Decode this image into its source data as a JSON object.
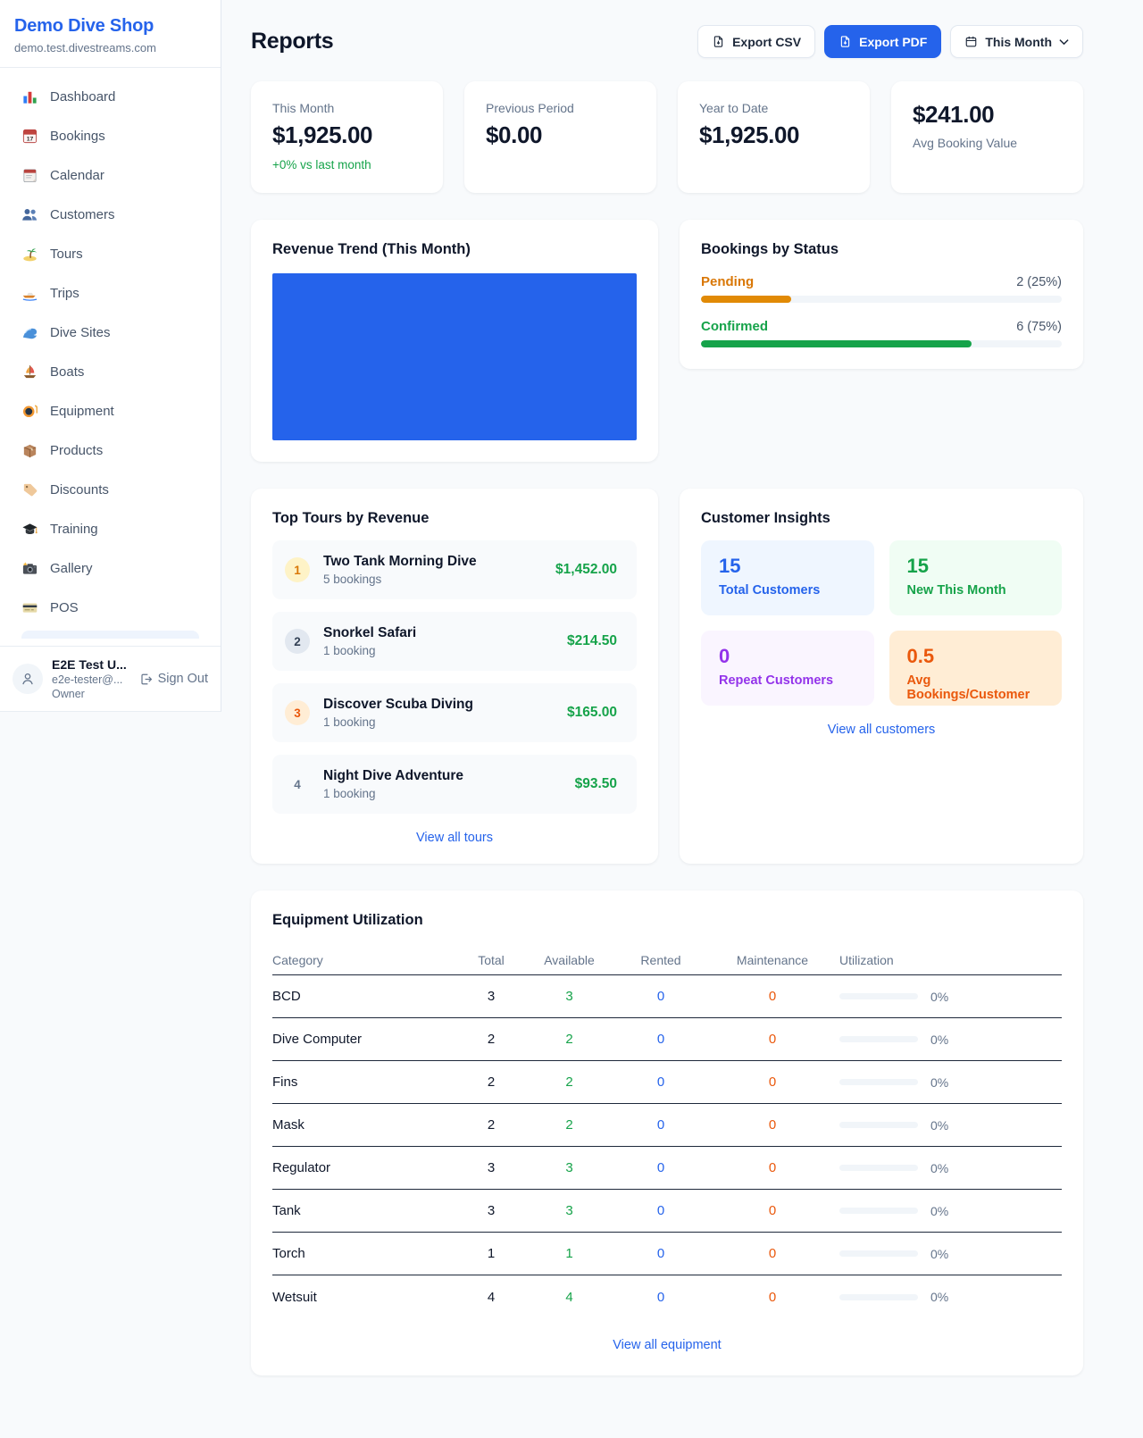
{
  "colors": {
    "accent_blue": "#2563eb",
    "green": "#16a34a",
    "orange": "#ea580c",
    "amber": "#d97706",
    "purple": "#9333ea",
    "page_background": "#f8fafc"
  },
  "sidebar": {
    "shop_name": "Demo Dive Shop",
    "domain": "demo.test.divestreams.com",
    "items": [
      {
        "label": "Dashboard",
        "icon": "bar-chart-icon"
      },
      {
        "label": "Bookings",
        "icon": "calendar-date-icon"
      },
      {
        "label": "Calendar",
        "icon": "calendar-pad-icon"
      },
      {
        "label": "Customers",
        "icon": "people-icon"
      },
      {
        "label": "Tours",
        "icon": "island-icon"
      },
      {
        "label": "Trips",
        "icon": "speedboat-icon"
      },
      {
        "label": "Dive Sites",
        "icon": "wave-icon"
      },
      {
        "label": "Boats",
        "icon": "sailboat-icon"
      },
      {
        "label": "Equipment",
        "icon": "dive-mask-icon"
      },
      {
        "label": "Products",
        "icon": "package-icon"
      },
      {
        "label": "Discounts",
        "icon": "tag-icon"
      },
      {
        "label": "Training",
        "icon": "graduation-cap-icon"
      },
      {
        "label": "Gallery",
        "icon": "camera-icon"
      },
      {
        "label": "POS",
        "icon": "credit-card-icon"
      }
    ],
    "user": {
      "name": "E2E Test U...",
      "email": "e2e-tester@...",
      "role": "Owner",
      "sign_out_label": "Sign Out"
    }
  },
  "header": {
    "title": "Reports",
    "export_csv_label": "Export CSV",
    "export_pdf_label": "Export PDF",
    "period_label": "This Month"
  },
  "stats": {
    "cards": [
      {
        "label": "This Month",
        "value": "$1,925.00",
        "delta": "+0% vs last month"
      },
      {
        "label": "Previous Period",
        "value": "$0.00"
      },
      {
        "label": "Year to Date",
        "value": "$1,925.00"
      },
      {
        "label": "Avg Booking Value",
        "value": "$241.00"
      }
    ]
  },
  "revenue_trend": {
    "title": "Revenue Trend (This Month)",
    "chart": {
      "type": "bar",
      "bar_color": "#2563eb",
      "bars": [
        {
          "fraction_of_plot": 1
        }
      ]
    }
  },
  "bookings_by_status": {
    "title": "Bookings by Status",
    "rows": [
      {
        "label": "Pending",
        "count_label": "2 (25%)",
        "pct": 25,
        "color": "#d97706"
      },
      {
        "label": "Confirmed",
        "count_label": "6 (75%)",
        "pct": 75,
        "color": "#16a34a"
      }
    ]
  },
  "top_tours": {
    "title": "Top Tours by Revenue",
    "rows": [
      {
        "rank": "1",
        "name": "Two Tank Morning Dive",
        "bookings": "5 bookings",
        "revenue": "$1,452.00"
      },
      {
        "rank": "2",
        "name": "Snorkel Safari",
        "bookings": "1 booking",
        "revenue": "$214.50"
      },
      {
        "rank": "3",
        "name": "Discover Scuba Diving",
        "bookings": "1 booking",
        "revenue": "$165.00"
      },
      {
        "rank": "4",
        "name": "Night Dive Adventure",
        "bookings": "1 booking",
        "revenue": "$93.50"
      }
    ],
    "view_all": "View all tours"
  },
  "customer_insights": {
    "title": "Customer Insights",
    "tiles": [
      {
        "value": "15",
        "label": "Total Customers"
      },
      {
        "value": "15",
        "label": "New This Month"
      },
      {
        "value": "0",
        "label": "Repeat Customers"
      },
      {
        "value": "0.5",
        "label": "Avg Bookings/Customer"
      }
    ],
    "view_all": "View all customers"
  },
  "equipment": {
    "title": "Equipment Utilization",
    "columns": [
      "Category",
      "Total",
      "Available",
      "Rented",
      "Maintenance",
      "Utilization"
    ],
    "rows": [
      [
        "BCD",
        "3",
        "3",
        "0",
        "0",
        "0%"
      ],
      [
        "Dive Computer",
        "2",
        "2",
        "0",
        "0",
        "0%"
      ],
      [
        "Fins",
        "2",
        "2",
        "0",
        "0",
        "0%"
      ],
      [
        "Mask",
        "2",
        "2",
        "0",
        "0",
        "0%"
      ],
      [
        "Regulator",
        "3",
        "3",
        "0",
        "0",
        "0%"
      ],
      [
        "Tank",
        "3",
        "3",
        "0",
        "0",
        "0%"
      ],
      [
        "Torch",
        "1",
        "1",
        "0",
        "0",
        "0%"
      ],
      [
        "Wetsuit",
        "4",
        "4",
        "0",
        "0",
        "0%"
      ]
    ],
    "view_all": "View all equipment"
  }
}
